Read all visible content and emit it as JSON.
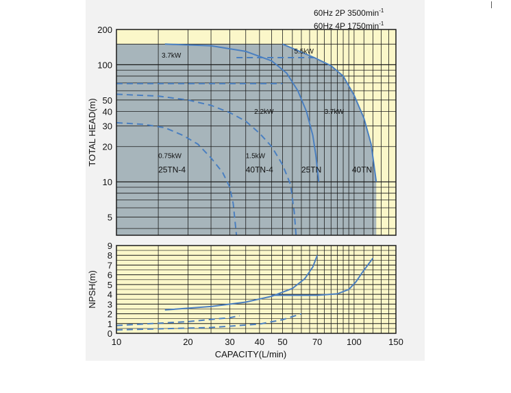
{
  "legend": {
    "line1": "60Hz 2P 3500min",
    "line2": "60Hz 4P 1750min",
    "superscript": "-1"
  },
  "colors": {
    "plot_background": "#fbf7c9",
    "coverage_area": "#a7b5bb",
    "curve": "#4a7fc0",
    "grid": "#1a1a1a"
  },
  "chart_data": [
    {
      "type": "line",
      "ylabel": "TOTAL HEAD(m)",
      "xscale": "log",
      "yscale": "log",
      "xlim": [
        10,
        150
      ],
      "ylim": [
        3.5,
        200
      ],
      "y_tick_labels": [
        "200",
        "100",
        "50",
        "40",
        "30",
        "20",
        "10",
        "5"
      ],
      "y_ticks": [
        200,
        100,
        50,
        40,
        30,
        20,
        10,
        5
      ],
      "coverage_area": [
        [
          10,
          150
        ],
        [
          50,
          150
        ],
        [
          68,
          115
        ],
        [
          80,
          98
        ],
        [
          90,
          80
        ],
        [
          100,
          55
        ],
        [
          110,
          35
        ],
        [
          118,
          21
        ],
        [
          124,
          10
        ],
        [
          124,
          3.5
        ],
        [
          10,
          3.5
        ]
      ],
      "series": [
        {
          "style": "solid",
          "points": [
            [
              16,
              150
            ],
            [
              25,
              145
            ],
            [
              35,
              130
            ],
            [
              45,
              108
            ],
            [
              52,
              85
            ],
            [
              58,
              60
            ],
            [
              63,
              40
            ],
            [
              67,
              25
            ],
            [
              69,
              17
            ],
            [
              70,
              13
            ],
            [
              71,
              10
            ]
          ]
        },
        {
          "style": "solid",
          "points": [
            [
              50,
              150
            ],
            [
              68,
              115
            ],
            [
              80,
              98
            ],
            [
              90,
              80
            ],
            [
              100,
              55
            ],
            [
              110,
              35
            ],
            [
              118,
              21
            ],
            [
              124,
              10
            ]
          ]
        },
        {
          "style": "dashed",
          "points": [
            [
              10,
              69
            ],
            [
              50,
              69
            ]
          ]
        },
        {
          "style": "dashed",
          "points": [
            [
              32,
              115
            ],
            [
              68,
              115
            ]
          ]
        },
        {
          "style": "dashed",
          "points": [
            [
              10,
              56
            ],
            [
              15,
              54
            ],
            [
              20,
              50
            ],
            [
              25,
              45
            ],
            [
              30,
              39
            ],
            [
              35,
              33
            ],
            [
              40,
              26
            ],
            [
              45,
              20
            ],
            [
              50,
              14
            ],
            [
              54,
              9.5
            ],
            [
              56,
              5.5
            ],
            [
              57,
              3.5
            ]
          ]
        },
        {
          "style": "dashed",
          "points": [
            [
              10,
              32
            ],
            [
              13,
              31
            ],
            [
              16,
              29
            ],
            [
              19,
              25
            ],
            [
              22,
              21
            ],
            [
              25,
              16
            ],
            [
              28,
              12
            ],
            [
              30,
              9
            ],
            [
              31,
              6.5
            ],
            [
              32,
              3.5
            ]
          ]
        }
      ],
      "annotations": [
        {
          "text": "3.7kW",
          "x": 15.5,
          "y": 115
        },
        {
          "text": "5.5kW",
          "x": 56,
          "y": 125
        },
        {
          "text": "2.2kW",
          "x": 38,
          "y": 38
        },
        {
          "text": "3.7kW",
          "x": 75,
          "y": 38
        },
        {
          "text": "0.75kW",
          "x": 15,
          "y": 16
        },
        {
          "text": "1.5kW",
          "x": 35,
          "y": 16
        },
        {
          "text": "25TN-4",
          "x": 15,
          "y": 12
        },
        {
          "text": "40TN-4",
          "x": 35,
          "y": 12
        },
        {
          "text": "25TN",
          "x": 60,
          "y": 12
        },
        {
          "text": "40TN",
          "x": 98,
          "y": 12
        }
      ]
    },
    {
      "type": "line",
      "xlabel": "CAPACITY(L/min)",
      "ylabel": "NPSH(m)",
      "xscale": "log",
      "xlim": [
        10,
        150
      ],
      "ylim": [
        0,
        9
      ],
      "x_tick_labels": [
        "10",
        "20",
        "30",
        "40",
        "50",
        "70",
        "100",
        "150"
      ],
      "x_ticks": [
        10,
        20,
        30,
        40,
        50,
        70,
        100,
        150
      ],
      "y_tick_labels": [
        "0",
        "1",
        "2",
        "3",
        "4",
        "5",
        "6",
        "7",
        "8",
        "9"
      ],
      "y_ticks": [
        0,
        1,
        2,
        3,
        4,
        5,
        6,
        7,
        8,
        9
      ],
      "series": [
        {
          "style": "solid",
          "points": [
            [
              16,
              2.4
            ],
            [
              25,
              2.75
            ],
            [
              35,
              3.2
            ],
            [
              45,
              3.8
            ],
            [
              55,
              4.6
            ],
            [
              62,
              5.6
            ],
            [
              67,
              6.8
            ],
            [
              70,
              8.0
            ]
          ]
        },
        {
          "style": "solid",
          "points": [
            [
              45,
              3.9
            ],
            [
              70,
              3.9
            ],
            [
              85,
              4.05
            ],
            [
              95,
              4.5
            ],
            [
              102,
              5.3
            ],
            [
              108,
              6.2
            ],
            [
              115,
              7.1
            ],
            [
              120,
              7.7
            ]
          ]
        },
        {
          "style": "dashed",
          "points": [
            [
              10,
              0.8
            ],
            [
              20,
              1.2
            ],
            [
              30,
              1.6
            ],
            [
              33,
              1.8
            ]
          ]
        },
        {
          "style": "dashed",
          "points": [
            [
              10,
              0.35
            ],
            [
              25,
              0.6
            ],
            [
              40,
              0.95
            ],
            [
              50,
              1.4
            ],
            [
              60,
              2.0
            ]
          ]
        }
      ]
    }
  ]
}
